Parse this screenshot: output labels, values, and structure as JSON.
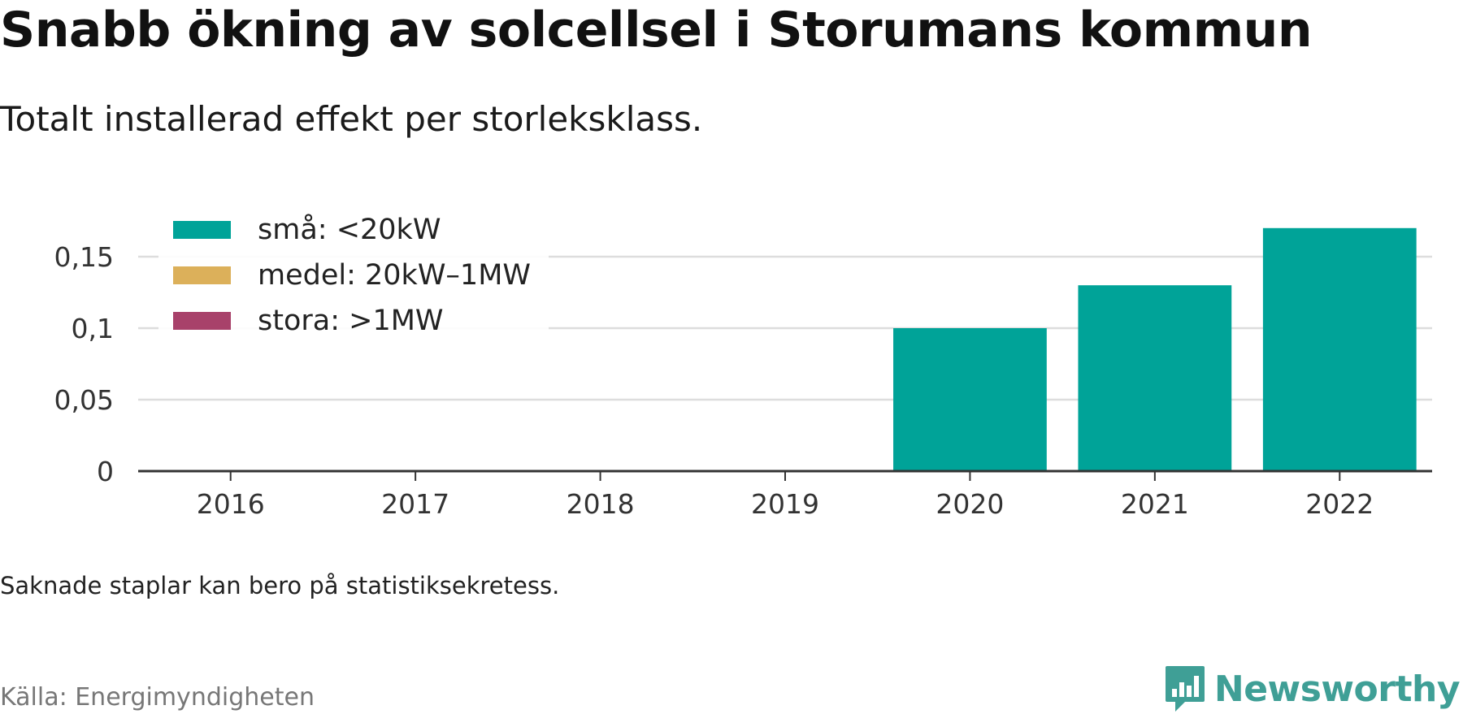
{
  "title": "Snabb ökning av solcellsel i Storumans kommun",
  "subtitle": "Totalt installerad effekt per storleksklass.",
  "note": "Saknade staplar kan bero på statistiksekretess.",
  "source": "Källa: Energimyndigheten",
  "brand": {
    "name": "Newsworthy",
    "icon": "newsworthy-logo-icon",
    "color": "#3f9f96"
  },
  "chart_data": {
    "type": "bar",
    "stacked": true,
    "categories": [
      "2016",
      "2017",
      "2018",
      "2019",
      "2020",
      "2021",
      "2022"
    ],
    "series": [
      {
        "name": "små: <20kW",
        "color": "#00a398",
        "values": [
          0,
          0,
          0,
          0,
          0.1,
          0.13,
          0.17
        ]
      },
      {
        "name": "medel: 20kW–1MW",
        "color": "#dcb05a",
        "values": [
          0,
          0,
          0,
          0,
          0,
          0,
          0
        ]
      },
      {
        "name": "stora: >1MW",
        "color": "#a8416a",
        "values": [
          0,
          0,
          0,
          0,
          0,
          0,
          0
        ]
      }
    ],
    "yticks": [
      0,
      0.05,
      0.1,
      0.15
    ],
    "ytick_labels": [
      "0",
      "0,05",
      "0,1",
      "0,15"
    ],
    "ylim": [
      0,
      0.17
    ],
    "grid": true,
    "legend_position": "top-left"
  }
}
